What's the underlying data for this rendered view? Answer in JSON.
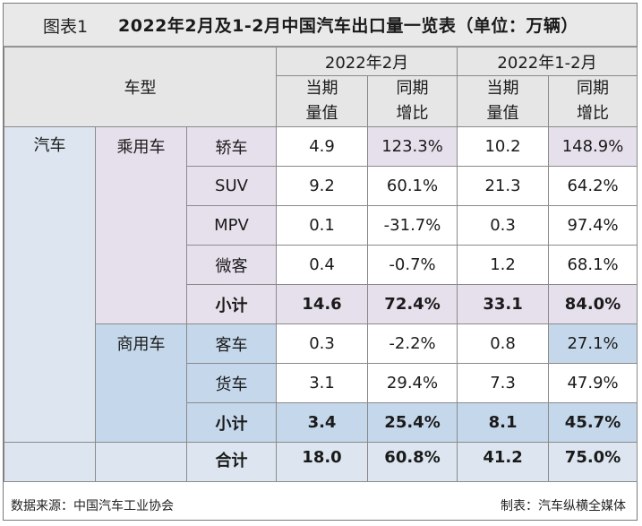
{
  "title": {
    "label": "图表1",
    "text": "2022年2月及1-2月中国汽车出口量一览表（单位：万辆）"
  },
  "header": {
    "vehicle_type": "车型",
    "period_feb": "2022年2月",
    "period_jan_feb": "2022年1-2月",
    "volume_line1": "当期",
    "volume_line2": "量值",
    "growth_line1": "同期",
    "growth_line2": "增比"
  },
  "categories": {
    "automobile": "汽车",
    "passenger": "乘用车",
    "commercial": "商用车",
    "subtotal": "小计",
    "total": "合计"
  },
  "rows": [
    {
      "type": "轿车",
      "feb_volume": "4.9",
      "feb_growth": "123.3%",
      "ytd_volume": "10.2",
      "ytd_growth": "148.9%"
    },
    {
      "type": "SUV",
      "feb_volume": "9.2",
      "feb_growth": "60.1%",
      "ytd_volume": "21.3",
      "ytd_growth": "64.2%"
    },
    {
      "type": "MPV",
      "feb_volume": "0.1",
      "feb_growth": "-31.7%",
      "ytd_volume": "0.3",
      "ytd_growth": "97.4%"
    },
    {
      "type": "微客",
      "feb_volume": "0.4",
      "feb_growth": "-0.7%",
      "ytd_volume": "1.2",
      "ytd_growth": "68.1%"
    },
    {
      "type": "小计",
      "feb_volume": "14.6",
      "feb_growth": "72.4%",
      "ytd_volume": "33.1",
      "ytd_growth": "84.0%"
    },
    {
      "type": "客车",
      "feb_volume": "0.3",
      "feb_growth": "-2.2%",
      "ytd_volume": "0.8",
      "ytd_growth": "27.1%"
    },
    {
      "type": "货车",
      "feb_volume": "3.1",
      "feb_growth": "29.4%",
      "ytd_volume": "7.3",
      "ytd_growth": "47.9%"
    },
    {
      "type": "小计",
      "feb_volume": "3.4",
      "feb_growth": "25.4%",
      "ytd_volume": "8.1",
      "ytd_growth": "45.7%"
    },
    {
      "type": "合计",
      "feb_volume": "18.0",
      "feb_growth": "60.8%",
      "ytd_volume": "41.2",
      "ytd_growth": "75.0%"
    }
  ],
  "footer": {
    "source": "数据来源：中国汽车工业协会",
    "maker": "制表：汽车纵横全媒体"
  },
  "colors": {
    "header_bg": "#e6e6e6",
    "automobile_bg": "#dde6f0",
    "passenger_bg": "#e6e0ec",
    "commercial_bg": "#c5d7eb"
  }
}
